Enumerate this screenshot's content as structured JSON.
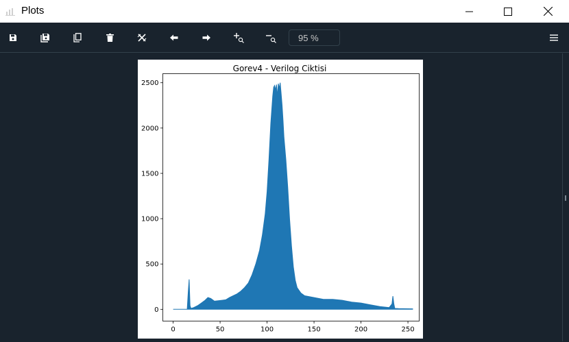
{
  "window": {
    "title": "Plots",
    "controls": [
      "minimize",
      "maximize",
      "close"
    ]
  },
  "toolbar": {
    "buttons": [
      {
        "name": "save-icon"
      },
      {
        "name": "save-all-icon"
      },
      {
        "name": "copy-icon"
      },
      {
        "name": "trash-icon"
      },
      {
        "name": "close-all-icon"
      },
      {
        "name": "arrow-left-icon"
      },
      {
        "name": "arrow-right-icon"
      },
      {
        "name": "zoom-in-icon"
      },
      {
        "name": "zoom-out-icon"
      }
    ],
    "zoom_value": "95 %",
    "menu_icon": "hamburger-menu-icon"
  },
  "colors": {
    "background": "#19232d",
    "border": "#32414b",
    "series": "#1f77b4"
  },
  "chart_data": {
    "type": "area",
    "title": "Gorev4 - Verilog Ciktisi",
    "xlabel": "",
    "ylabel": "",
    "xlim": [
      -11,
      262
    ],
    "ylim": [
      -130,
      2600
    ],
    "xticks": [
      0,
      50,
      100,
      150,
      200,
      250
    ],
    "yticks": [
      0,
      500,
      1000,
      1500,
      2000,
      2500
    ],
    "series": [
      {
        "x": [
          0,
          15,
          16,
          17,
          18,
          19,
          22,
          26,
          30,
          34,
          37,
          40,
          44,
          48,
          52,
          56,
          60,
          64,
          68,
          72,
          76,
          80,
          84,
          88,
          92,
          95,
          98,
          100,
          102,
          104,
          106,
          107,
          108,
          109,
          110,
          111,
          112,
          113,
          114,
          115,
          116,
          117,
          118,
          120,
          122,
          124,
          126,
          128,
          130,
          132,
          136,
          140,
          150,
          160,
          170,
          180,
          190,
          200,
          210,
          220,
          230,
          233,
          234,
          235,
          236,
          240,
          255
        ],
        "y": [
          0,
          0,
          180,
          330,
          40,
          10,
          20,
          40,
          70,
          100,
          130,
          120,
          90,
          95,
          100,
          105,
          130,
          150,
          170,
          200,
          240,
          290,
          380,
          500,
          650,
          820,
          1050,
          1300,
          1650,
          2050,
          2350,
          2450,
          2470,
          2420,
          2480,
          2350,
          2490,
          2440,
          2500,
          2380,
          2250,
          2080,
          1900,
          1650,
          1350,
          1000,
          700,
          470,
          320,
          240,
          180,
          150,
          130,
          110,
          110,
          100,
          80,
          70,
          50,
          30,
          20,
          60,
          145,
          60,
          10,
          8,
          5
        ]
      }
    ]
  }
}
